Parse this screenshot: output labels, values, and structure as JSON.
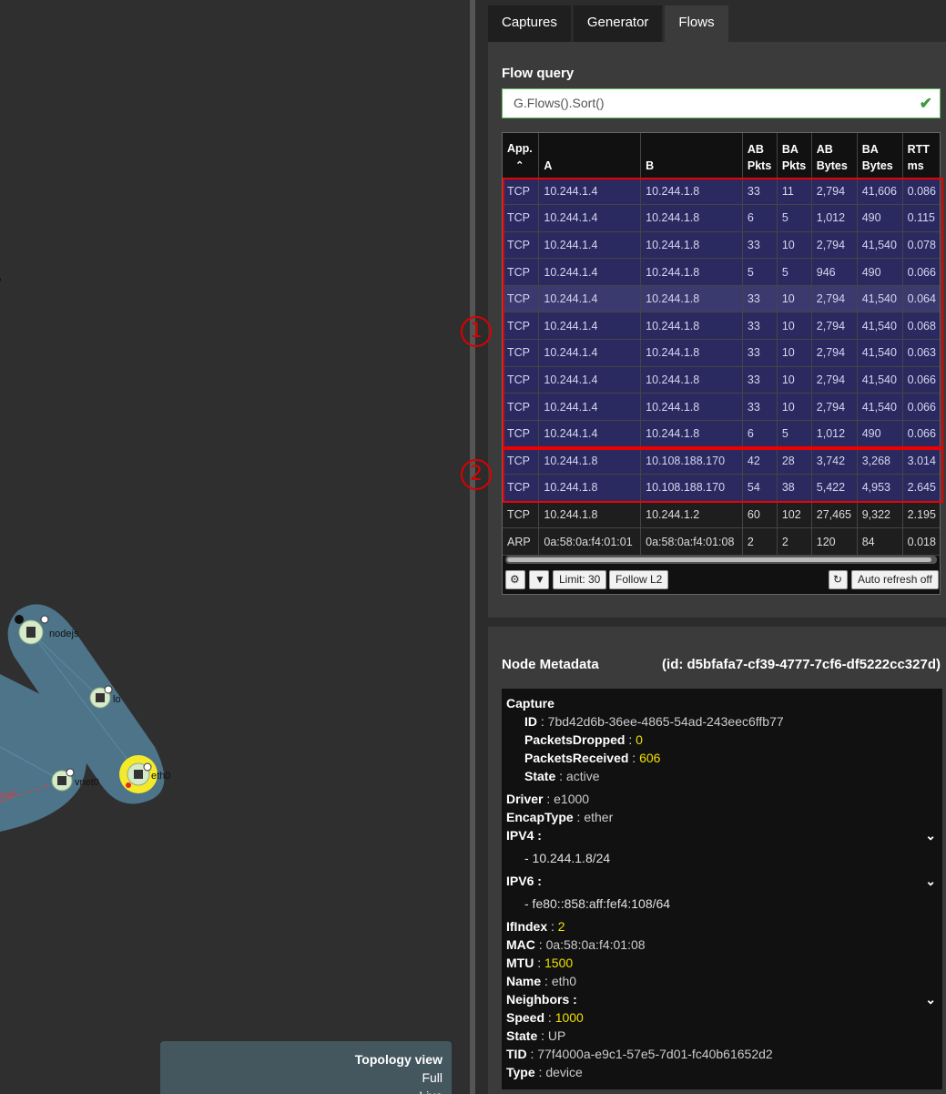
{
  "topology": {
    "nodes": [
      {
        "label": "nodejs",
        "icon": "server-icon"
      },
      {
        "label": "lo",
        "icon": "interface-icon"
      },
      {
        "label": "vnet0",
        "icon": "interface-icon"
      },
      {
        "label": "eth0",
        "icon": "interface-icon"
      }
    ],
    "edge_label": "Kbps",
    "view_box": {
      "title": "Topology view",
      "mode": "Full",
      "mode2": "Live"
    }
  },
  "tabs": [
    "Captures",
    "Generator",
    "Flows"
  ],
  "active_tab": "Flows",
  "flow_query": {
    "label": "Flow query",
    "value": "G.Flows().Sort()",
    "valid_icon": "check-icon"
  },
  "flow_table": {
    "columns": [
      "App.",
      "A",
      "B",
      "AB Pkts",
      "BA Pkts",
      "AB Bytes",
      "BA Bytes",
      "RTT ms"
    ],
    "sort_column": "App.",
    "rows": [
      [
        "TCP",
        "10.244.1.4",
        "10.244.1.8",
        "33",
        "11",
        "2,794",
        "41,606",
        "0.086"
      ],
      [
        "TCP",
        "10.244.1.4",
        "10.244.1.8",
        "6",
        "5",
        "1,012",
        "490",
        "0.115"
      ],
      [
        "TCP",
        "10.244.1.4",
        "10.244.1.8",
        "33",
        "10",
        "2,794",
        "41,540",
        "0.078"
      ],
      [
        "TCP",
        "10.244.1.4",
        "10.244.1.8",
        "5",
        "5",
        "946",
        "490",
        "0.066"
      ],
      [
        "TCP",
        "10.244.1.4",
        "10.244.1.8",
        "33",
        "10",
        "2,794",
        "41,540",
        "0.064"
      ],
      [
        "TCP",
        "10.244.1.4",
        "10.244.1.8",
        "33",
        "10",
        "2,794",
        "41,540",
        "0.068"
      ],
      [
        "TCP",
        "10.244.1.4",
        "10.244.1.8",
        "33",
        "10",
        "2,794",
        "41,540",
        "0.063"
      ],
      [
        "TCP",
        "10.244.1.4",
        "10.244.1.8",
        "33",
        "10",
        "2,794",
        "41,540",
        "0.066"
      ],
      [
        "TCP",
        "10.244.1.4",
        "10.244.1.8",
        "33",
        "10",
        "2,794",
        "41,540",
        "0.066"
      ],
      [
        "TCP",
        "10.244.1.4",
        "10.244.1.8",
        "6",
        "5",
        "1,012",
        "490",
        "0.066"
      ],
      [
        "TCP",
        "10.244.1.8",
        "10.108.188.170",
        "42",
        "28",
        "3,742",
        "3,268",
        "3.014"
      ],
      [
        "TCP",
        "10.244.1.8",
        "10.108.188.170",
        "54",
        "38",
        "5,422",
        "4,953",
        "2.645"
      ],
      [
        "TCP",
        "10.244.1.8",
        "10.244.1.2",
        "60",
        "102",
        "27,465",
        "9,322",
        "2.195"
      ],
      [
        "ARP",
        "0a:58:0a:f4:01:01",
        "0a:58:0a:f4:01:08",
        "2",
        "2",
        "120",
        "84",
        "0.018"
      ]
    ],
    "highlighted_rows": 12,
    "hover_row": 4
  },
  "annotations": {
    "marker1": "1",
    "marker2": "2"
  },
  "toolbar": {
    "settings_icon": "gear-icon",
    "filter_icon": "filter-icon",
    "limit": "Limit: 30",
    "follow": "Follow L2",
    "refresh_icon": "refresh-icon",
    "auto_refresh": "Auto refresh off"
  },
  "metadata": {
    "title": "Node Metadata",
    "id": "(id: d5bfafa7-cf39-4777-7cf6-df5222cc327d)",
    "capture": {
      "label": "Capture",
      "id_k": "ID",
      "id_v": "7bd42d6b-36ee-4865-54ad-243eec6ffb77",
      "dropped_k": "PacketsDropped",
      "dropped_v": "0",
      "received_k": "PacketsReceived",
      "received_v": "606",
      "state_k": "State",
      "state_v": "active"
    },
    "driver_k": "Driver",
    "driver_v": "e1000",
    "encap_k": "EncapType",
    "encap_v": "ether",
    "ipv4_k": "IPV4 :",
    "ipv4_v": "- 10.244.1.8/24",
    "ipv6_k": "IPV6 :",
    "ipv6_v": "- fe80::858:aff:fef4:108/64",
    "ifindex_k": "IfIndex",
    "ifindex_v": "2",
    "mac_k": "MAC",
    "mac_v": "0a:58:0a:f4:01:08",
    "mtu_k": "MTU",
    "mtu_v": "1500",
    "name_k": "Name",
    "name_v": "eth0",
    "neighbors_k": "Neighbors :",
    "speed_k": "Speed",
    "speed_v": "1000",
    "state_k": "State",
    "state_v": "UP",
    "tid_k": "TID",
    "tid_v": "77f4000a-e9c1-57e5-7d01-fc40b61652d2",
    "type_k": "Type",
    "type_v": "device"
  }
}
